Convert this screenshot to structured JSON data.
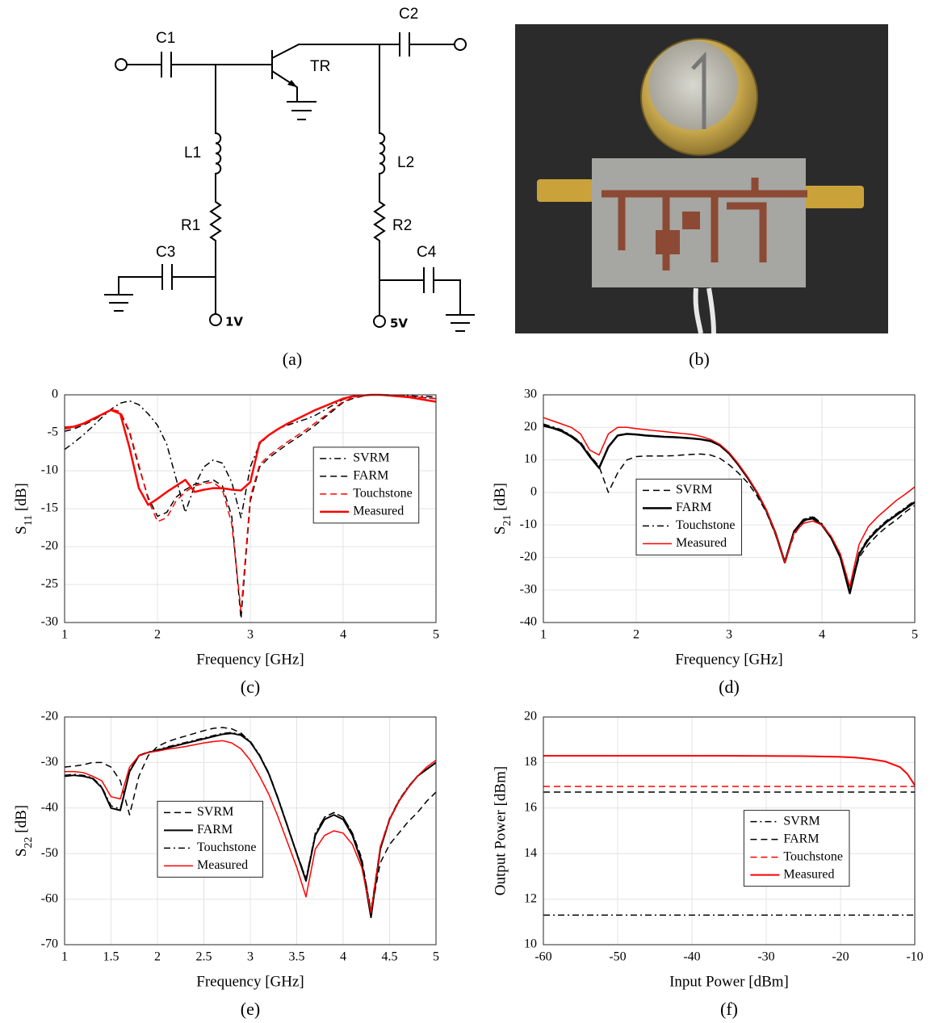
{
  "schematic": {
    "labels": [
      "C1",
      "C2",
      "TR",
      "L1",
      "L2",
      "R1",
      "R2",
      "C3",
      "C4"
    ],
    "supplies": [
      "1V",
      "5V"
    ],
    "caption": "(a)"
  },
  "photo": {
    "caption": "(b)"
  },
  "chart_data": [
    {
      "type": "line",
      "caption": "(c)",
      "xlabel": "Frequency [GHz]",
      "ylabel": "S11 [dB]",
      "xlim": [
        1,
        5
      ],
      "xticks": [
        1,
        2,
        3,
        4,
        5
      ],
      "ylim": [
        -30,
        0
      ],
      "yticks": [
        -30,
        -25,
        -20,
        -15,
        -10,
        -5,
        0
      ],
      "grid": true,
      "legend": "upper right",
      "x": [
        1,
        1.1,
        1.2,
        1.3,
        1.4,
        1.5,
        1.6,
        1.7,
        1.8,
        1.9,
        2,
        2.1,
        2.2,
        2.3,
        2.4,
        2.5,
        2.6,
        2.7,
        2.8,
        2.9,
        3,
        3.1,
        3.2,
        3.3,
        3.4,
        3.5,
        3.6,
        3.7,
        3.8,
        3.9,
        4,
        4.1,
        4.2,
        4.3,
        4.4,
        4.5,
        4.6,
        4.7,
        4.8,
        4.9,
        5
      ],
      "series": [
        {
          "name": "SVRM",
          "color": "#000000",
          "linestyle": "dashdot",
          "linewidth": 1.5,
          "values": [
            -7.2,
            -6.3,
            -5.3,
            -4.2,
            -3,
            -1.9,
            -1.1,
            -0.8,
            -1.3,
            -2.5,
            -4,
            -6.5,
            -11,
            -15.5,
            -12,
            -9.5,
            -8.6,
            -9,
            -11.5,
            -16.2,
            -9.5,
            -6.5,
            -5.3,
            -4.5,
            -4,
            -3.6,
            -3.2,
            -2.7,
            -2,
            -1.3,
            -0.6,
            -0.3,
            -0.1,
            0,
            0,
            0,
            -0.1,
            -0.1,
            -0.2,
            -0.2,
            -0.3
          ]
        },
        {
          "name": "FARM",
          "color": "#000000",
          "linestyle": "dashed",
          "linewidth": 1.5,
          "values": [
            -4.8,
            -4.5,
            -4,
            -3.4,
            -2.7,
            -2,
            -2.3,
            -5,
            -9.5,
            -13.5,
            -16,
            -15.5,
            -13.5,
            -12.5,
            -11.8,
            -11.5,
            -11.2,
            -12,
            -16,
            -29.5,
            -14,
            -9.5,
            -8.3,
            -7.4,
            -6.5,
            -5.7,
            -4.9,
            -4,
            -3,
            -2,
            -1,
            -0.5,
            -0.2,
            0,
            0,
            -0.1,
            -0.1,
            -0.2,
            -0.3,
            -0.4,
            -0.5
          ]
        },
        {
          "name": "Touchstone",
          "color": "#ff0000",
          "linestyle": "dashed",
          "linewidth": 1.5,
          "values": [
            -4.5,
            -4.3,
            -3.9,
            -3.3,
            -2.6,
            -1.9,
            -2.2,
            -4.8,
            -9.2,
            -13.8,
            -16.7,
            -16.2,
            -14,
            -12.8,
            -12,
            -11.7,
            -11.5,
            -12.5,
            -17,
            -28.5,
            -13.5,
            -9.2,
            -8,
            -7.1,
            -6.2,
            -5.4,
            -4.6,
            -3.7,
            -2.8,
            -1.8,
            -0.9,
            -0.4,
            -0.1,
            0,
            0,
            -0.1,
            -0.1,
            -0.2,
            -0.3,
            -0.4,
            -0.5
          ]
        },
        {
          "name": "Measured",
          "color": "#ff0000",
          "linestyle": "solid",
          "linewidth": 2.5,
          "values": [
            -4.3,
            -4.2,
            -3.8,
            -3.2,
            -2.6,
            -2,
            -2.5,
            -7,
            -12.3,
            -14.5,
            -13.7,
            -12.8,
            -12,
            -11.2,
            -12.8,
            -12.5,
            -12.3,
            -12.3,
            -12.5,
            -12.6,
            -11.5,
            -6.3,
            -5.3,
            -4.5,
            -3.8,
            -3.2,
            -2.6,
            -2,
            -1.5,
            -1,
            -0.5,
            -0.2,
            -0.1,
            0,
            0,
            -0.1,
            -0.2,
            -0.3,
            -0.5,
            -0.7,
            -0.9
          ]
        }
      ]
    },
    {
      "type": "line",
      "caption": "(d)",
      "xlabel": "Frequency [GHz]",
      "ylabel": "S21 [dB]",
      "xlim": [
        1,
        5
      ],
      "xticks": [
        1,
        2,
        3,
        4,
        5
      ],
      "ylim": [
        -40,
        30
      ],
      "yticks": [
        -40,
        -30,
        -20,
        -10,
        0,
        10,
        20,
        30
      ],
      "grid": true,
      "legend": "center left",
      "x": [
        1,
        1.1,
        1.2,
        1.3,
        1.4,
        1.5,
        1.6,
        1.7,
        1.8,
        1.9,
        2,
        2.1,
        2.2,
        2.3,
        2.4,
        2.5,
        2.6,
        2.7,
        2.8,
        2.9,
        3,
        3.1,
        3.2,
        3.3,
        3.4,
        3.5,
        3.6,
        3.7,
        3.8,
        3.9,
        4,
        4.1,
        4.2,
        4.3,
        4.4,
        4.5,
        4.6,
        4.7,
        4.8,
        4.9,
        5
      ],
      "series": [
        {
          "name": "SVRM",
          "color": "#000000",
          "linestyle": "dashed",
          "linewidth": 1.5,
          "values": [
            21,
            20,
            19,
            17.5,
            15.5,
            11.5,
            8,
            0,
            6,
            10,
            11,
            11.2,
            11.2,
            11.2,
            11.3,
            11.5,
            11.7,
            11.8,
            11.5,
            10.5,
            8.5,
            6,
            3,
            -1,
            -6,
            -13,
            -21.5,
            -13,
            -9,
            -7.5,
            -10,
            -14,
            -20,
            -30.5,
            -20,
            -16,
            -13,
            -10.5,
            -8.5,
            -6,
            -4
          ]
        },
        {
          "name": "FARM",
          "color": "#000000",
          "linestyle": "solid",
          "linewidth": 2.5,
          "values": [
            20.5,
            19.8,
            18.8,
            17.2,
            15,
            11,
            7.5,
            14,
            17.5,
            18,
            17.8,
            17.5,
            17.3,
            17.1,
            17,
            16.8,
            16.6,
            16.3,
            15.8,
            14.5,
            12,
            8.5,
            4.5,
            0,
            -5.5,
            -12.5,
            -21.5,
            -12,
            -8.5,
            -8,
            -10,
            -14,
            -20,
            -31,
            -19,
            -14.5,
            -11.5,
            -9,
            -7,
            -5,
            -3
          ]
        },
        {
          "name": "Touchstone",
          "color": "#000000",
          "linestyle": "dashdot",
          "linewidth": 1.5,
          "values": [
            21,
            20.2,
            19.2,
            17.5,
            15.3,
            11.3,
            7.8,
            14.2,
            17.6,
            18,
            17.9,
            17.6,
            17.4,
            17.2,
            17,
            16.9,
            16.7,
            16.4,
            15.9,
            14.6,
            12.1,
            8.6,
            4.6,
            0.1,
            -5.4,
            -12.4,
            -21.3,
            -12,
            -8.3,
            -7.3,
            -9.6,
            -13.8,
            -19.8,
            -30,
            -18.5,
            -14,
            -11,
            -8.6,
            -6.6,
            -4.6,
            -2.5
          ]
        },
        {
          "name": "Measured",
          "color": "#ff0000",
          "linestyle": "solid",
          "linewidth": 1.5,
          "values": [
            23,
            22,
            21,
            20,
            18,
            13,
            11.5,
            18,
            20,
            20,
            19.6,
            19.3,
            19,
            18.7,
            18.4,
            18.1,
            17.8,
            17.2,
            16.3,
            14.8,
            12.3,
            8.8,
            4.8,
            0.2,
            -5.3,
            -12.5,
            -21.5,
            -12.5,
            -9.5,
            -8.8,
            -10,
            -13.5,
            -19,
            -29,
            -16,
            -10.5,
            -7.5,
            -5,
            -2.5,
            -0.5,
            1.7
          ]
        }
      ]
    },
    {
      "type": "line",
      "caption": "(e)",
      "xlabel": "Frequency [GHz]",
      "ylabel": "S22 [dB]",
      "xlim": [
        1,
        5
      ],
      "xticks": [
        1,
        1.5,
        2,
        2.5,
        3,
        3.5,
        4,
        4.5,
        5
      ],
      "ylim": [
        -70,
        -20
      ],
      "yticks": [
        -70,
        -60,
        -50,
        -40,
        -30,
        -20
      ],
      "grid": true,
      "legend": "center left",
      "x": [
        1,
        1.1,
        1.2,
        1.3,
        1.4,
        1.5,
        1.6,
        1.7,
        1.8,
        1.9,
        2,
        2.1,
        2.2,
        2.3,
        2.4,
        2.5,
        2.6,
        2.7,
        2.8,
        2.9,
        3,
        3.1,
        3.2,
        3.3,
        3.4,
        3.5,
        3.6,
        3.7,
        3.8,
        3.9,
        4,
        4.1,
        4.2,
        4.3,
        4.4,
        4.5,
        4.6,
        4.7,
        4.8,
        4.9,
        5
      ],
      "series": [
        {
          "name": "SVRM",
          "color": "#000000",
          "linestyle": "dashed",
          "linewidth": 1.5,
          "values": [
            -31,
            -30.8,
            -30.5,
            -30,
            -30,
            -31,
            -34,
            -41.5,
            -33,
            -28.5,
            -26.5,
            -25.5,
            -24.8,
            -24.2,
            -23.6,
            -23,
            -22.5,
            -22.3,
            -22.6,
            -23.5,
            -25.5,
            -28.5,
            -32.5,
            -38,
            -44,
            -50,
            -55.5,
            -46,
            -42,
            -41,
            -42,
            -45.5,
            -51,
            -63,
            -52,
            -48,
            -45.5,
            -43,
            -41,
            -38.5,
            -36.5
          ]
        },
        {
          "name": "FARM",
          "color": "#000000",
          "linestyle": "solid",
          "linewidth": 2,
          "values": [
            -33,
            -32.8,
            -33,
            -33.5,
            -35.5,
            -40,
            -40.5,
            -32,
            -28.5,
            -27.8,
            -27.3,
            -26.8,
            -26.3,
            -25.8,
            -25.3,
            -24.8,
            -24.3,
            -23.8,
            -23.6,
            -24,
            -25.5,
            -28.5,
            -32.5,
            -38,
            -44,
            -50,
            -56,
            -46,
            -42.5,
            -41.5,
            -42.5,
            -46,
            -52,
            -64,
            -49,
            -42.5,
            -38.5,
            -35.5,
            -33,
            -31.5,
            -30
          ]
        },
        {
          "name": "Touchstone",
          "color": "#000000",
          "linestyle": "dashdot",
          "linewidth": 1.5,
          "values": [
            -32.8,
            -32.6,
            -32.8,
            -33.3,
            -35.3,
            -39.5,
            -40.2,
            -31.8,
            -28.4,
            -27.7,
            -27.2,
            -26.6,
            -26.1,
            -25.6,
            -25.1,
            -24.6,
            -24.1,
            -23.6,
            -23.4,
            -23.8,
            -25.3,
            -28.3,
            -32.3,
            -37.8,
            -43.8,
            -49.8,
            -55.5,
            -45.5,
            -42,
            -41,
            -42,
            -45.5,
            -51.5,
            -62.5,
            -48.5,
            -42.3,
            -38.3,
            -35.3,
            -33,
            -31.5,
            -30
          ]
        },
        {
          "name": "Measured",
          "color": "#ff0000",
          "linestyle": "solid",
          "linewidth": 1.5,
          "values": [
            -32,
            -32,
            -32.2,
            -33,
            -34,
            -37.5,
            -38,
            -31,
            -28.5,
            -27.8,
            -27.5,
            -27.1,
            -26.8,
            -26.5,
            -26.1,
            -25.7,
            -25.4,
            -25.2,
            -25.7,
            -27,
            -29.5,
            -33,
            -37,
            -42,
            -47.5,
            -53,
            -59.5,
            -49,
            -46,
            -45,
            -45.5,
            -48,
            -53,
            -63,
            -48.5,
            -42.5,
            -38.5,
            -35.5,
            -33,
            -31,
            -29.5
          ]
        }
      ]
    },
    {
      "type": "line",
      "caption": "(f)",
      "xlabel": "Input Power [dBm]",
      "ylabel": "Output Power [dBm]",
      "xlim": [
        -60,
        -10
      ],
      "xticks": [
        -60,
        -50,
        -40,
        -30,
        -20,
        -10
      ],
      "ylim": [
        10,
        20
      ],
      "yticks": [
        10,
        12,
        14,
        16,
        18,
        20
      ],
      "grid": true,
      "legend": "center right",
      "x": [
        -60,
        -50,
        -40,
        -30,
        -25,
        -20,
        -18,
        -16,
        -14,
        -12,
        -11,
        -10
      ],
      "series": [
        {
          "name": "SVRM",
          "color": "#000000",
          "linestyle": "dashdot",
          "linewidth": 1.5,
          "values": [
            11.3,
            11.3,
            11.3,
            11.3,
            11.3,
            11.3,
            11.3,
            11.3,
            11.3,
            11.3,
            11.3,
            11.3
          ]
        },
        {
          "name": "FARM",
          "color": "#000000",
          "linestyle": "dashed",
          "linewidth": 1.5,
          "values": [
            16.7,
            16.7,
            16.7,
            16.7,
            16.7,
            16.7,
            16.7,
            16.7,
            16.7,
            16.7,
            16.7,
            16.7
          ]
        },
        {
          "name": "Touchstone",
          "color": "#ff0000",
          "linestyle": "dashed",
          "linewidth": 1.5,
          "values": [
            16.95,
            16.95,
            16.95,
            16.95,
            16.95,
            16.95,
            16.95,
            16.95,
            16.95,
            16.95,
            16.95,
            16.95
          ]
        },
        {
          "name": "Measured",
          "color": "#ff0000",
          "linestyle": "solid",
          "linewidth": 2,
          "values": [
            18.3,
            18.3,
            18.3,
            18.29,
            18.28,
            18.25,
            18.22,
            18.15,
            18.05,
            17.8,
            17.5,
            17
          ]
        }
      ]
    }
  ]
}
